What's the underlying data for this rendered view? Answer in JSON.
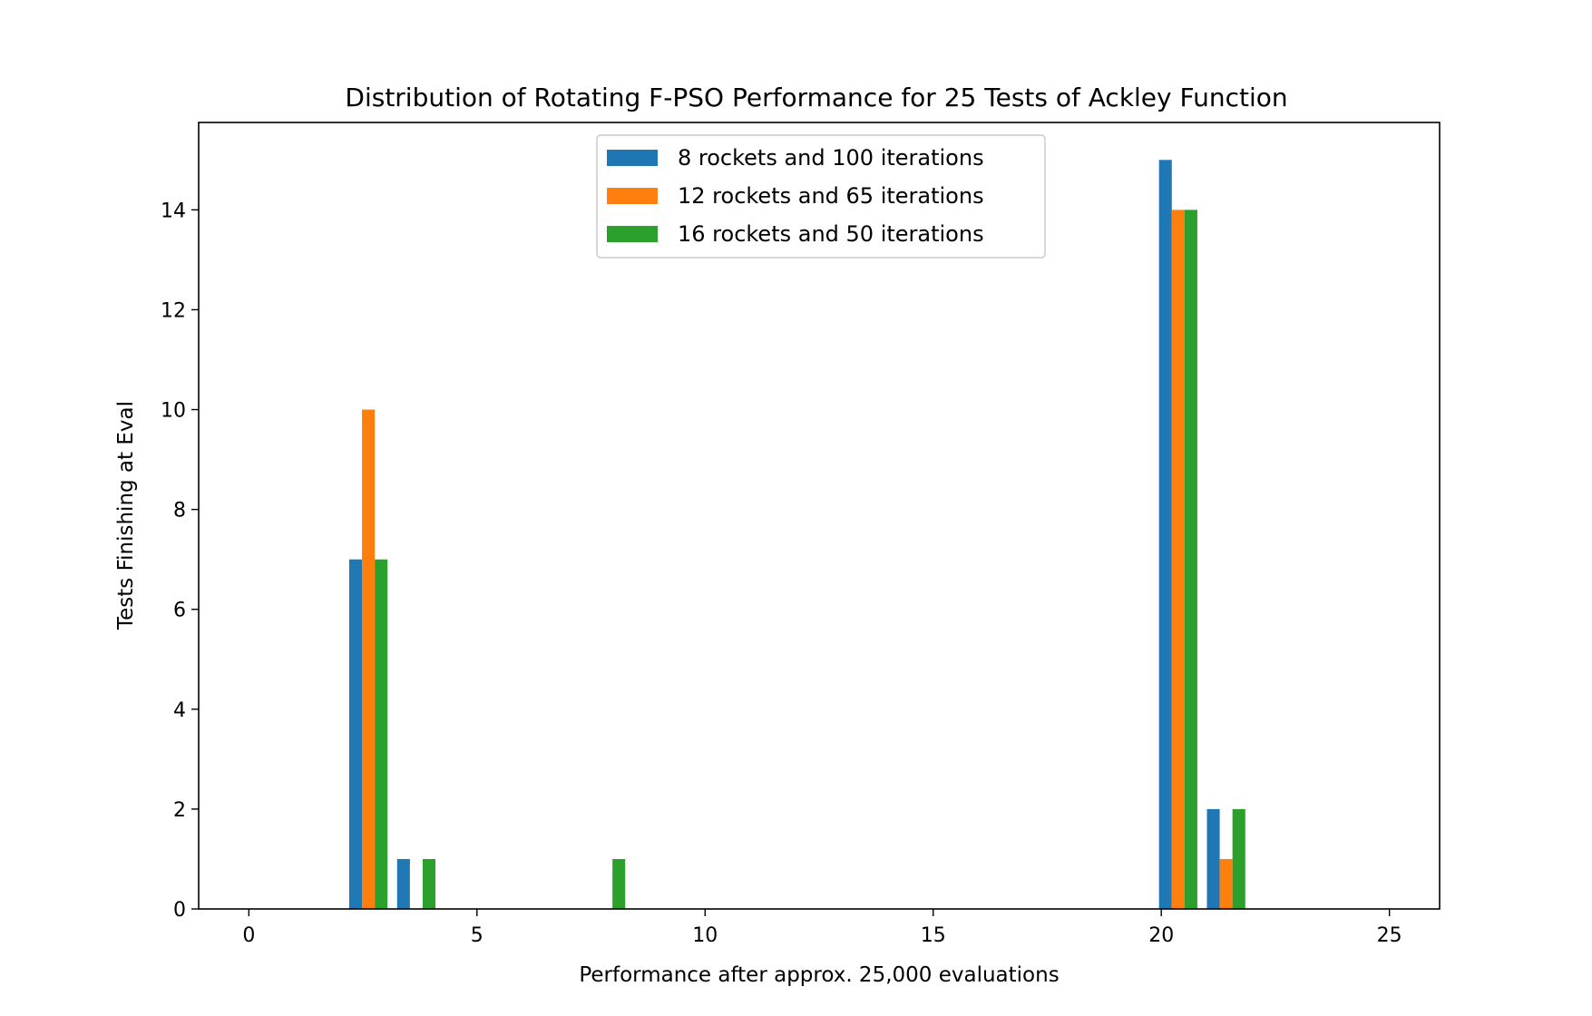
{
  "chart_data": {
    "type": "bar",
    "title": "Distribution of Rotating F-PSO Performance for 25 Tests of Ackley Function",
    "xlabel": "Performance after approx. 25,000 evaluations",
    "ylabel": "Tests Finishing at Eval",
    "xlim": [
      -1.1,
      26.1
    ],
    "ylim": [
      0,
      15.75
    ],
    "xticks": [
      0,
      5,
      10,
      15,
      20,
      25
    ],
    "yticks": [
      0,
      2,
      4,
      6,
      8,
      10,
      12,
      14
    ],
    "bin_width": 0.28,
    "legend_position": "upper center",
    "grid": false,
    "series": [
      {
        "name": "8 rockets and 100 iterations",
        "color": "#1f77b4",
        "bins": [
          {
            "x": 2.2,
            "value": 7
          },
          {
            "x": 3.25,
            "value": 1
          },
          {
            "x": 19.95,
            "value": 15
          },
          {
            "x": 21.0,
            "value": 2
          }
        ]
      },
      {
        "name": "12 rockets and 65 iterations",
        "color": "#ff7f0e",
        "bins": [
          {
            "x": 2.48,
            "value": 10
          },
          {
            "x": 20.23,
            "value": 14
          },
          {
            "x": 21.28,
            "value": 1
          }
        ]
      },
      {
        "name": "16 rockets and 50 iterations",
        "color": "#2ca02c",
        "bins": [
          {
            "x": 2.76,
            "value": 7
          },
          {
            "x": 3.81,
            "value": 1
          },
          {
            "x": 7.97,
            "value": 1
          },
          {
            "x": 20.51,
            "value": 14
          },
          {
            "x": 21.56,
            "value": 2
          }
        ]
      }
    ]
  }
}
